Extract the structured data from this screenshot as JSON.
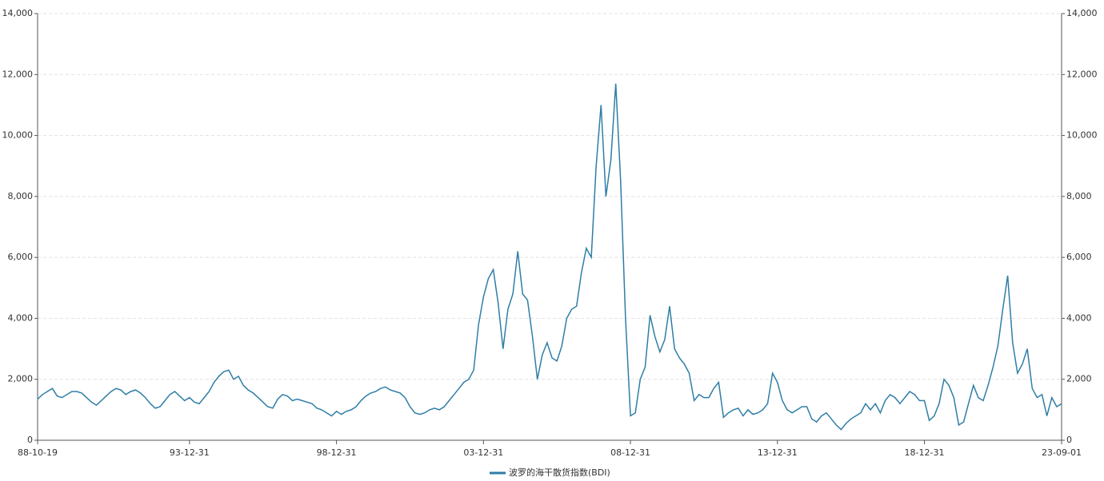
{
  "chart_data": {
    "type": "line",
    "categories": [
      "88-10-19",
      null,
      null,
      null,
      null,
      null,
      null,
      null,
      null,
      null,
      null,
      null,
      null,
      null,
      null,
      null,
      null,
      null,
      null,
      null,
      null,
      null,
      null,
      null,
      null,
      null,
      null,
      null,
      null,
      null,
      null,
      "93-12-31",
      null,
      null,
      null,
      null,
      null,
      null,
      null,
      null,
      null,
      null,
      null,
      null,
      null,
      null,
      null,
      null,
      null,
      null,
      null,
      null,
      null,
      null,
      null,
      null,
      null,
      null,
      null,
      null,
      null,
      "98-12-31",
      null,
      null,
      null,
      null,
      null,
      null,
      null,
      null,
      null,
      null,
      null,
      null,
      null,
      null,
      null,
      null,
      null,
      null,
      null,
      null,
      null,
      null,
      null,
      null,
      null,
      null,
      null,
      null,
      null,
      "03-12-31",
      null,
      null,
      null,
      null,
      null,
      null,
      null,
      null,
      null,
      null,
      null,
      null,
      null,
      null,
      null,
      null,
      null,
      null,
      null,
      null,
      null,
      null,
      null,
      null,
      null,
      null,
      null,
      null,
      null,
      "08-12-31",
      null,
      null,
      null,
      null,
      null,
      null,
      null,
      null,
      null,
      null,
      null,
      null,
      null,
      null,
      null,
      null,
      null,
      null,
      null,
      null,
      null,
      null,
      null,
      null,
      null,
      null,
      null,
      null,
      null,
      "13-12-31",
      null,
      null,
      null,
      null,
      null,
      null,
      null,
      null,
      null,
      null,
      null,
      null,
      null,
      null,
      null,
      null,
      null,
      null,
      null,
      null,
      null,
      null,
      null,
      null,
      null,
      null,
      null,
      null,
      null,
      "18-12-31",
      null,
      null,
      null,
      null,
      null,
      null,
      null,
      null,
      null,
      null,
      null,
      null,
      null,
      null,
      null,
      null,
      null,
      null,
      null,
      null,
      null,
      null,
      null,
      null,
      null,
      null,
      null,
      "23-09-01"
    ],
    "series": [
      {
        "name": "波罗的海干散货指数(BDI)",
        "color": "#2f7ea6",
        "values": [
          1350,
          1500,
          1600,
          1700,
          1450,
          1400,
          1500,
          1600,
          1600,
          1550,
          1400,
          1250,
          1150,
          1300,
          1450,
          1600,
          1700,
          1650,
          1500,
          1600,
          1650,
          1550,
          1400,
          1200,
          1050,
          1100,
          1300,
          1500,
          1600,
          1450,
          1300,
          1400,
          1250,
          1200,
          1400,
          1600,
          1900,
          2100,
          2250,
          2300,
          2000,
          2100,
          1800,
          1650,
          1550,
          1400,
          1250,
          1100,
          1050,
          1350,
          1500,
          1450,
          1300,
          1350,
          1300,
          1250,
          1200,
          1050,
          1000,
          900,
          800,
          950,
          850,
          950,
          1000,
          1100,
          1300,
          1450,
          1550,
          1600,
          1700,
          1750,
          1650,
          1600,
          1550,
          1400,
          1100,
          900,
          850,
          900,
          1000,
          1050,
          1000,
          1100,
          1300,
          1500,
          1700,
          1900,
          2000,
          2300,
          3800,
          4700,
          5300,
          5600,
          4500,
          3000,
          4300,
          4800,
          6200,
          4800,
          4600,
          3400,
          2000,
          2800,
          3200,
          2700,
          2600,
          3100,
          4000,
          4300,
          4400,
          5500,
          6300,
          6000,
          9000,
          11000,
          8000,
          9200,
          11700,
          8500,
          4000,
          800,
          900,
          2000,
          2400,
          4100,
          3400,
          2900,
          3300,
          4400,
          3000,
          2700,
          2500,
          2200,
          1300,
          1500,
          1400,
          1400,
          1700,
          1900,
          750,
          900,
          1000,
          1050,
          800,
          1000,
          850,
          900,
          1000,
          1200,
          2200,
          1900,
          1300,
          1000,
          900,
          1000,
          1100,
          1100,
          700,
          600,
          800,
          900,
          700,
          500,
          350,
          550,
          700,
          800,
          900,
          1200,
          1000,
          1200,
          900,
          1300,
          1500,
          1400,
          1200,
          1400,
          1600,
          1500,
          1300,
          1300,
          650,
          800,
          1200,
          2000,
          1800,
          1400,
          500,
          600,
          1200,
          1800,
          1400,
          1300,
          1800,
          2400,
          3100,
          4300,
          5400,
          3200,
          2200,
          2500,
          3000,
          1700,
          1400,
          1500,
          800,
          1400,
          1100,
          1200
        ]
      }
    ],
    "ylim": [
      0,
      14000
    ],
    "yticks": [
      0,
      {
        "value": 2000,
        "label": "2,000"
      },
      {
        "value": 4000,
        "label": "4,000"
      },
      {
        "value": 6000,
        "label": "6,000"
      },
      {
        "value": 8000,
        "label": "8,000"
      },
      {
        "value": 10000,
        "label": "10,000"
      },
      {
        "value": 12000,
        "label": "12,000"
      },
      {
        "value": 14000,
        "label": "14,000"
      }
    ],
    "y2lim": [
      0,
      14000
    ],
    "y2ticks": [
      0,
      {
        "value": 2000,
        "label": "2,000"
      },
      {
        "value": 4000,
        "label": "4,000"
      },
      {
        "value": 6000,
        "label": "6,000"
      },
      {
        "value": 8000,
        "label": "8,000"
      },
      {
        "value": 10000,
        "label": "10,000"
      },
      {
        "value": 12000,
        "label": "12,000"
      },
      {
        "value": 14000,
        "label": "14,000"
      }
    ],
    "grid": true
  }
}
